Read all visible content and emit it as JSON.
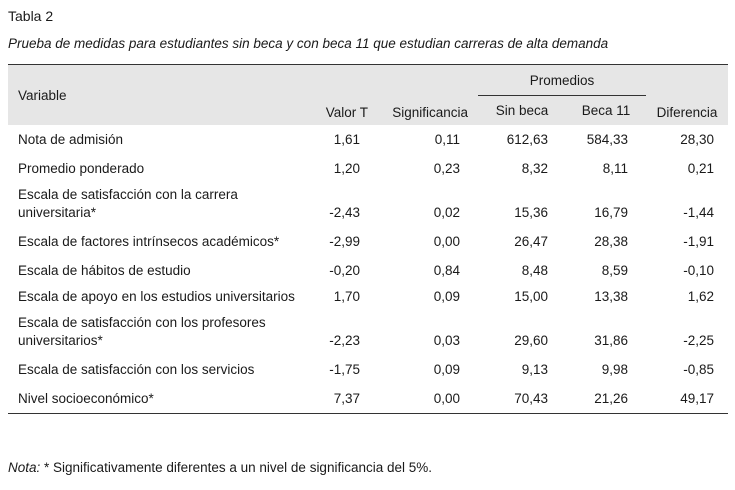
{
  "label": "Tabla 2",
  "caption": "Prueba de medidas para estudiantes sin beca y con beca 11 que estudian carreras de alta demanda",
  "headers": {
    "variable": "Variable",
    "valor_t": "Valor T",
    "significancia": "Significancia",
    "promedios": "Promedios",
    "sin_beca": "Sin beca",
    "beca_11": "Beca 11",
    "diferencia": "Diferencia"
  },
  "rows": [
    {
      "variable": "Nota de admisión",
      "valor_t": "1,61",
      "significancia": "0,11",
      "sin_beca": "612,63",
      "beca_11": "584,33",
      "diferencia": "28,30"
    },
    {
      "variable": "Promedio ponderado",
      "valor_t": "1,20",
      "significancia": "0,23",
      "sin_beca": "8,32",
      "beca_11": "8,11",
      "diferencia": "0,21"
    },
    {
      "variable": "Escala de satisfacción con la carrera universitaria*",
      "valor_t": "-2,43",
      "significancia": "0,02",
      "sin_beca": "15,36",
      "beca_11": "16,79",
      "diferencia": "-1,44"
    },
    {
      "variable": "Escala de factores intrínsecos académicos*",
      "valor_t": "-2,99",
      "significancia": "0,00",
      "sin_beca": "26,47",
      "beca_11": "28,38",
      "diferencia": "-1,91"
    },
    {
      "variable": "Escala de hábitos de estudio",
      "valor_t": "-0,20",
      "significancia": "0,84",
      "sin_beca": "8,48",
      "beca_11": "8,59",
      "diferencia": "-0,10"
    },
    {
      "variable": "Escala de apoyo en los estudios universitarios",
      "valor_t": "1,70",
      "significancia": "0,09",
      "sin_beca": "15,00",
      "beca_11": "13,38",
      "diferencia": "1,62"
    },
    {
      "variable": "Escala de satisfacción con los profesores universitarios*",
      "valor_t": "-2,23",
      "significancia": "0,03",
      "sin_beca": "29,60",
      "beca_11": "31,86",
      "diferencia": "-2,25"
    },
    {
      "variable": "Escala de satisfacción con los servicios",
      "valor_t": "-1,75",
      "significancia": "0,09",
      "sin_beca": "9,13",
      "beca_11": "9,98",
      "diferencia": "-0,85"
    },
    {
      "variable": "Nivel socioeconómico*",
      "valor_t": "7,37",
      "significancia": "0,00",
      "sin_beca": "70,43",
      "beca_11": "21,26",
      "diferencia": "49,17"
    }
  ],
  "note": {
    "label": "Nota:",
    "text": " * Significativamente diferentes a un nivel de significancia del 5%."
  }
}
